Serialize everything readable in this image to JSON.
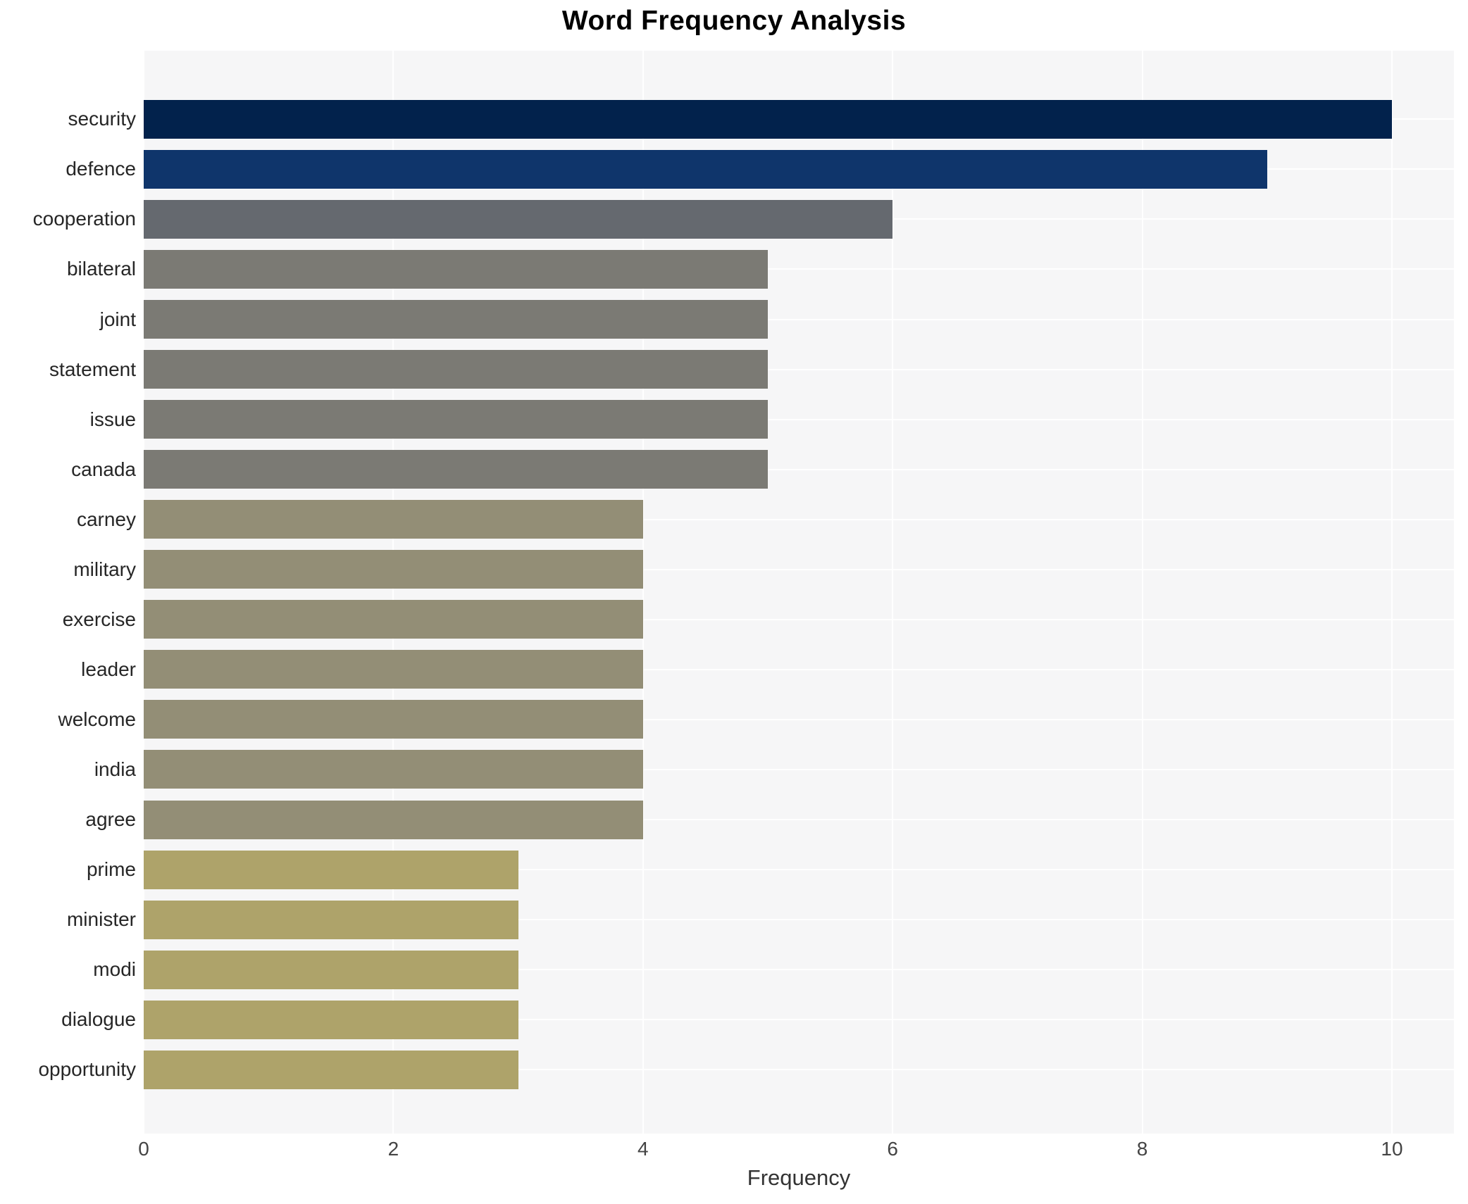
{
  "chart_data": {
    "type": "bar",
    "orientation": "horizontal",
    "title": "Word Frequency Analysis",
    "xlabel": "Frequency",
    "ylabel": "",
    "categories": [
      "security",
      "defence",
      "cooperation",
      "bilateral",
      "joint",
      "statement",
      "issue",
      "canada",
      "carney",
      "military",
      "exercise",
      "leader",
      "welcome",
      "india",
      "agree",
      "prime",
      "minister",
      "modi",
      "dialogue",
      "opportunity"
    ],
    "values": [
      10,
      9,
      6,
      5,
      5,
      5,
      5,
      5,
      4,
      4,
      4,
      4,
      4,
      4,
      4,
      3,
      3,
      3,
      3,
      3
    ],
    "bar_colors": [
      "#02224c",
      "#0f356b",
      "#65696f",
      "#7b7a74",
      "#7b7a74",
      "#7b7a74",
      "#7b7a74",
      "#7b7a74",
      "#938e76",
      "#938e76",
      "#938e76",
      "#938e76",
      "#938e76",
      "#938e76",
      "#938e76",
      "#aea36a",
      "#aea36a",
      "#aea36a",
      "#aea36a",
      "#aea36a"
    ],
    "xticks": [
      0,
      2,
      4,
      6,
      8,
      10
    ],
    "xlim": [
      0,
      10.5
    ],
    "grid": "major white gridlines on light panel",
    "legend": "none",
    "panel_bg": "#f6f6f7",
    "gridline_color": "#ffffff"
  }
}
